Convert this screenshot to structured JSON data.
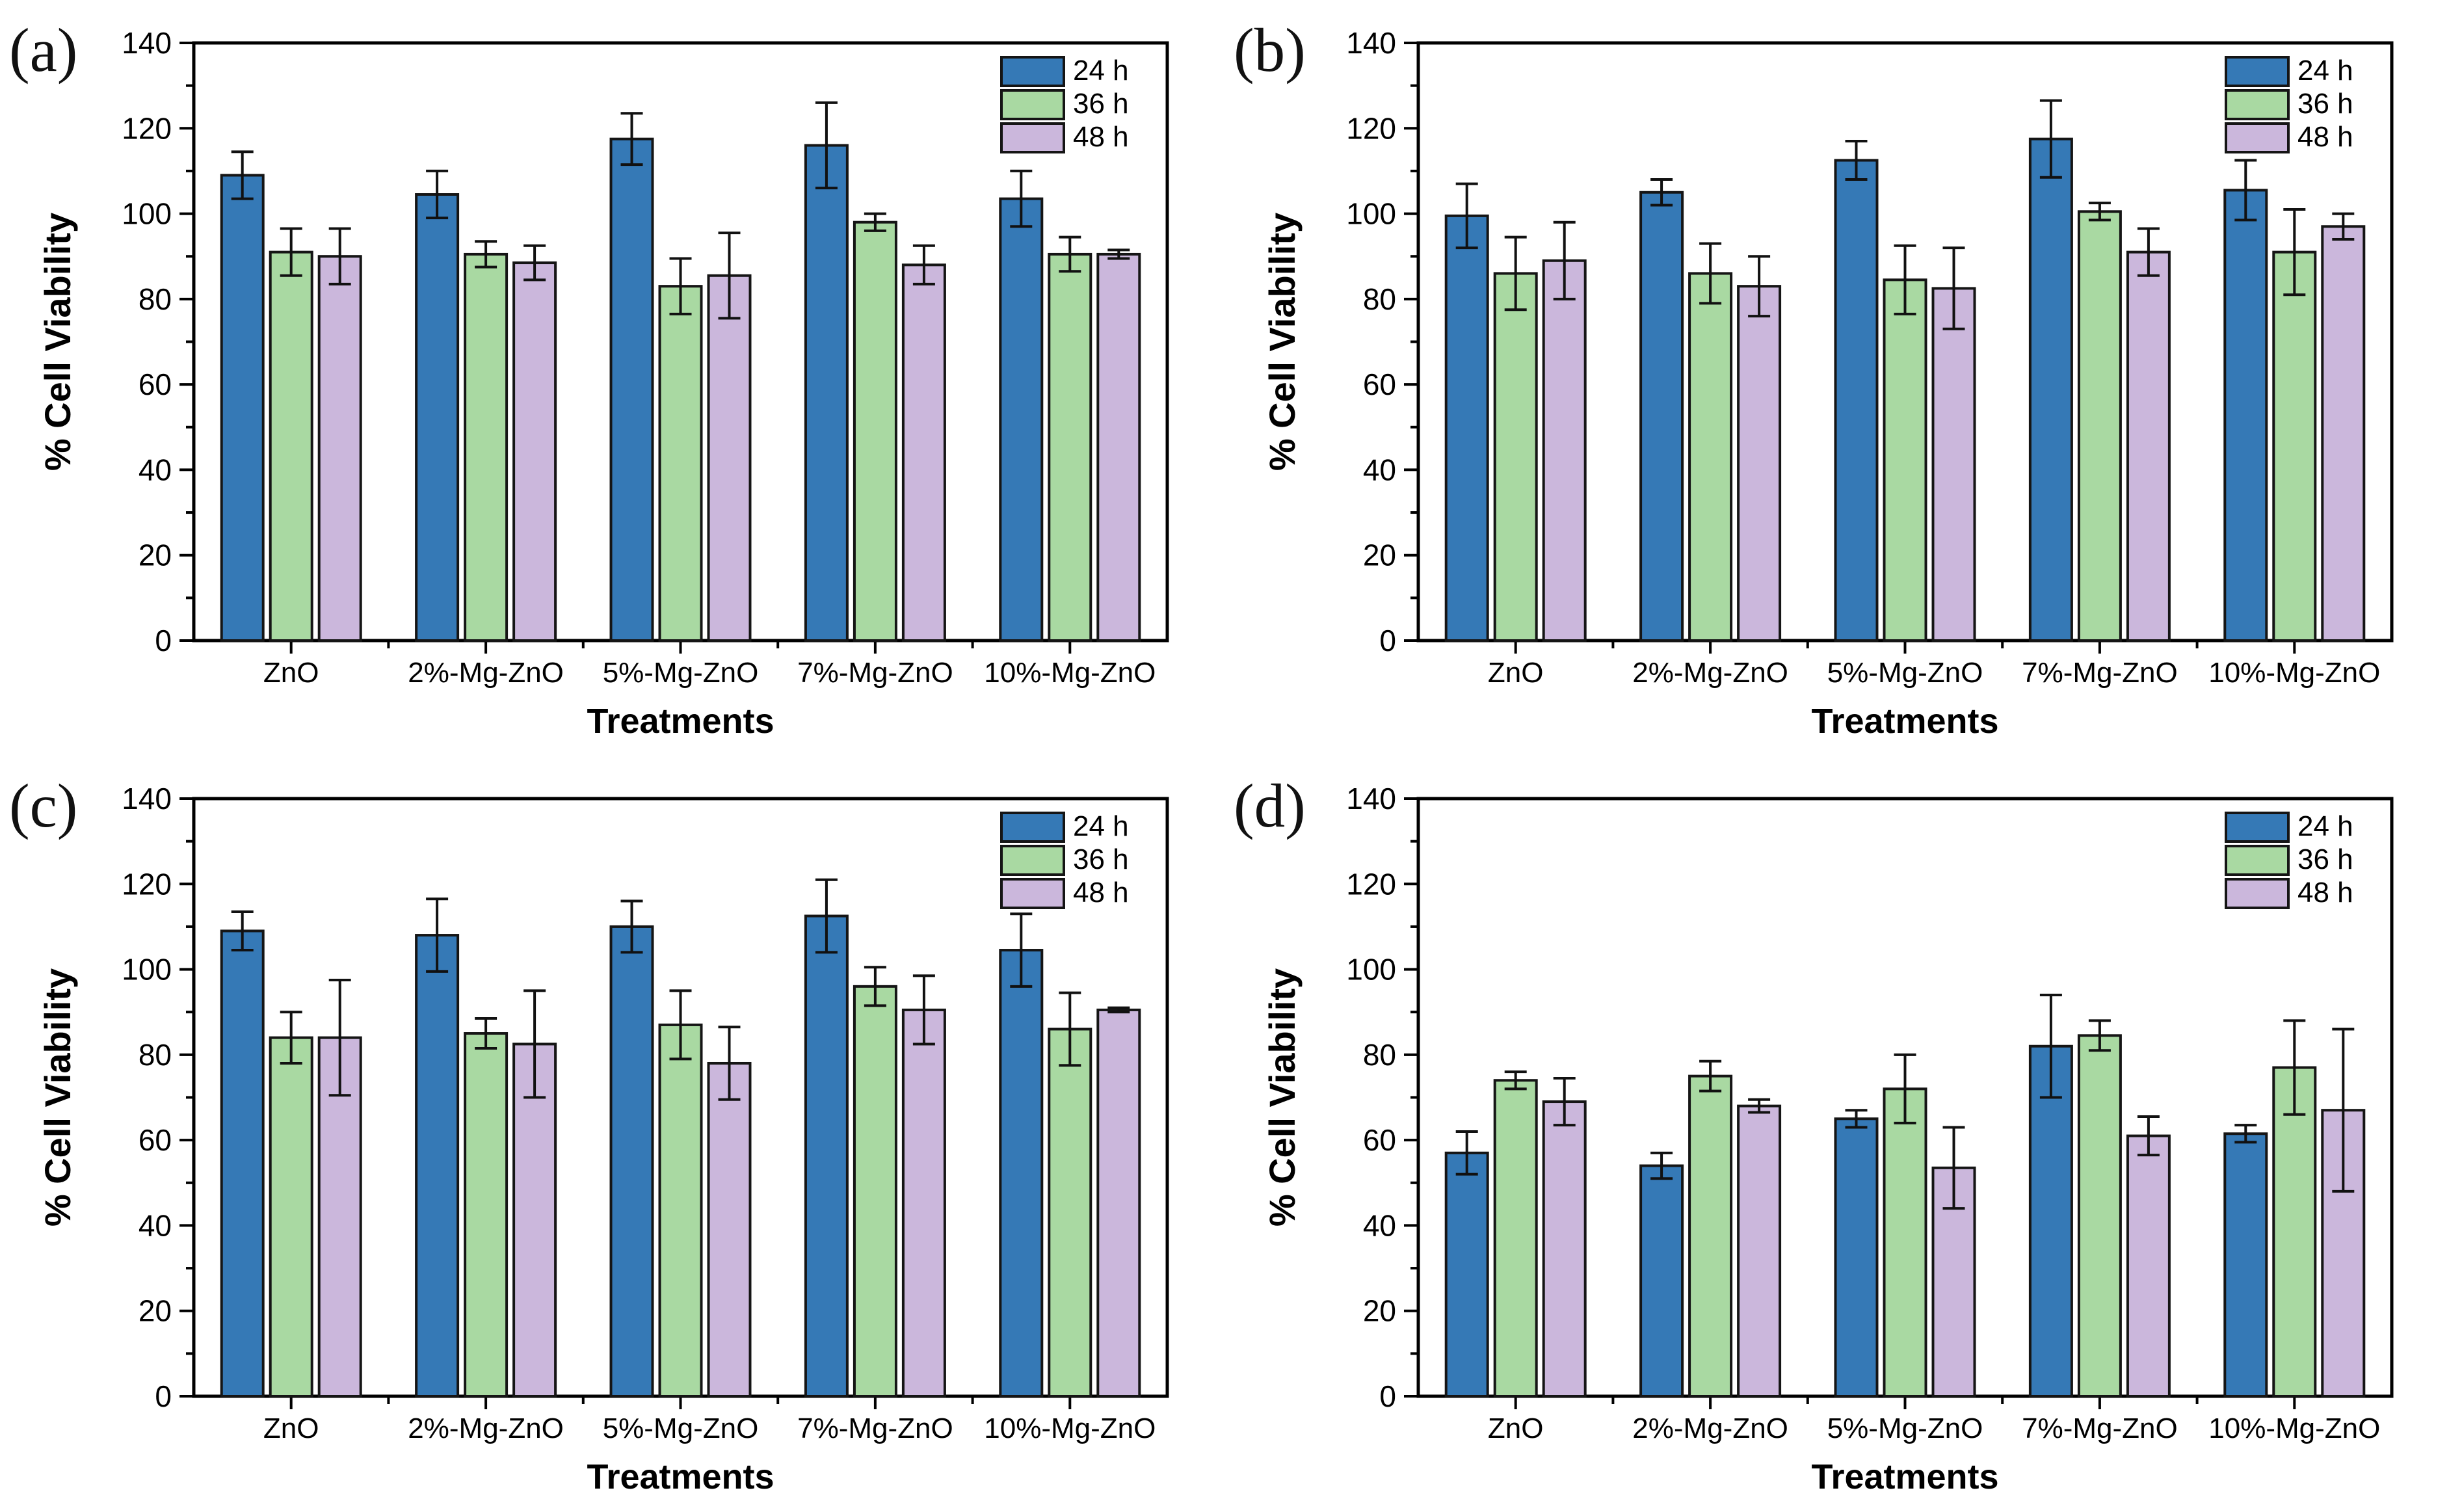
{
  "figure": {
    "background": "#ffffff",
    "panel_count": 4
  },
  "colors": {
    "series": {
      "24 h": "#3579b6",
      "36 h": "#a9d9a2",
      "48 h": "#cbb7dc"
    },
    "bar_outline": "#151515",
    "axis": "#000000",
    "error_bar": "#111111",
    "text": "#000000"
  },
  "chart_data": [
    {
      "id": "a",
      "label": "(a)",
      "type": "bar",
      "title": "",
      "xlabel": "Treatments",
      "ylabel": "% Cell Viability",
      "ylim": [
        0,
        140
      ],
      "ytick_step": 20,
      "yminor_step": 10,
      "grid": false,
      "legend_position": "top-right",
      "categories": [
        "ZnO",
        "2%-Mg-ZnO",
        "5%-Mg-ZnO",
        "7%-Mg-ZnO",
        "10%-Mg-ZnO"
      ],
      "series": [
        {
          "name": "24 h",
          "values": [
            109,
            104.5,
            117.5,
            116,
            103.5
          ],
          "errors": [
            5.5,
            5.5,
            6,
            10,
            6.5
          ]
        },
        {
          "name": "36 h",
          "values": [
            91,
            90.5,
            83,
            98,
            90.5
          ],
          "errors": [
            5.5,
            3,
            6.5,
            2,
            4
          ]
        },
        {
          "name": "48 h",
          "values": [
            90,
            88.5,
            85.5,
            88,
            90.5
          ],
          "errors": [
            6.5,
            4,
            10,
            4.5,
            1
          ]
        }
      ]
    },
    {
      "id": "b",
      "label": "(b)",
      "type": "bar",
      "title": "",
      "xlabel": "Treatments",
      "ylabel": "% Cell Viability",
      "ylim": [
        0,
        140
      ],
      "ytick_step": 20,
      "yminor_step": 10,
      "grid": false,
      "legend_position": "top-right",
      "categories": [
        "ZnO",
        "2%-Mg-ZnO",
        "5%-Mg-ZnO",
        "7%-Mg-ZnO",
        "10%-Mg-ZnO"
      ],
      "series": [
        {
          "name": "24 h",
          "values": [
            99.5,
            105,
            112.5,
            117.5,
            105.5
          ],
          "errors": [
            7.5,
            3,
            4.5,
            9,
            7
          ]
        },
        {
          "name": "36 h",
          "values": [
            86,
            86,
            84.5,
            100.5,
            91
          ],
          "errors": [
            8.5,
            7,
            8,
            2,
            10
          ]
        },
        {
          "name": "48 h",
          "values": [
            89,
            83,
            82.5,
            91,
            97
          ],
          "errors": [
            9,
            7,
            9.5,
            5.5,
            3
          ]
        }
      ]
    },
    {
      "id": "c",
      "label": "(c)",
      "type": "bar",
      "title": "",
      "xlabel": "Treatments",
      "ylabel": "% Cell Viability",
      "ylim": [
        0,
        140
      ],
      "ytick_step": 20,
      "yminor_step": 10,
      "grid": false,
      "legend_position": "top-right",
      "categories": [
        "ZnO",
        "2%-Mg-ZnO",
        "5%-Mg-ZnO",
        "7%-Mg-ZnO",
        "10%-Mg-ZnO"
      ],
      "series": [
        {
          "name": "24 h",
          "values": [
            109,
            108,
            110,
            112.5,
            104.5
          ],
          "errors": [
            4.5,
            8.5,
            6,
            8.5,
            8.5
          ]
        },
        {
          "name": "36 h",
          "values": [
            84,
            85,
            87,
            96,
            86
          ],
          "errors": [
            6,
            3.5,
            8,
            4.5,
            8.5
          ]
        },
        {
          "name": "48 h",
          "values": [
            84,
            82.5,
            78,
            90.5,
            90.5
          ],
          "errors": [
            13.5,
            12.5,
            8.5,
            8,
            0.5
          ]
        }
      ]
    },
    {
      "id": "d",
      "label": "(d)",
      "type": "bar",
      "title": "",
      "xlabel": "Treatments",
      "ylabel": "% Cell Viability",
      "ylim": [
        0,
        140
      ],
      "ytick_step": 20,
      "yminor_step": 10,
      "grid": false,
      "legend_position": "top-right",
      "categories": [
        "ZnO",
        "2%-Mg-ZnO",
        "5%-Mg-ZnO",
        "7%-Mg-ZnO",
        "10%-Mg-ZnO"
      ],
      "series": [
        {
          "name": "24 h",
          "values": [
            57,
            54,
            65,
            82,
            61.5
          ],
          "errors": [
            5,
            3,
            2,
            12,
            2
          ]
        },
        {
          "name": "36 h",
          "values": [
            74,
            75,
            72,
            84.5,
            77
          ],
          "errors": [
            2,
            3.5,
            8,
            3.5,
            11
          ]
        },
        {
          "name": "48 h",
          "values": [
            69,
            68,
            53.5,
            61,
            67
          ],
          "errors": [
            5.5,
            1.5,
            9.5,
            4.5,
            19
          ]
        }
      ]
    }
  ]
}
